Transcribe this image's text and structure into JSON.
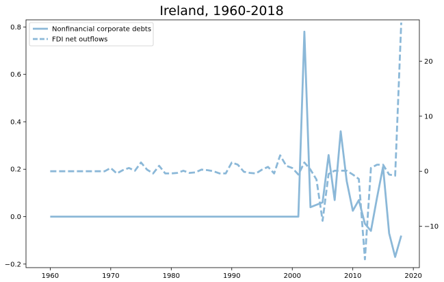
{
  "chart_data": {
    "type": "line",
    "title": "Ireland, 1960-2018",
    "xlabel": "",
    "ylabel_left": "",
    "ylabel_right": "",
    "xlim": [
      1956,
      2021
    ],
    "ylim_left": [
      -0.215,
      0.83
    ],
    "ylim_right": [
      -17.5,
      27.5
    ],
    "x_ticks": [
      1960,
      1970,
      1980,
      1990,
      2000,
      2010,
      2020
    ],
    "y_ticks_left": [
      -0.2,
      0.0,
      0.2,
      0.4,
      0.6,
      0.8
    ],
    "y_ticks_left_labels": [
      "−0.2",
      "0.0",
      "0.2",
      "0.4",
      "0.6",
      "0.8"
    ],
    "y_ticks_right": [
      -10,
      0,
      10,
      20
    ],
    "y_ticks_right_labels": [
      "−10",
      "0",
      "10",
      "20"
    ],
    "grid": false,
    "legend_position": "top-left",
    "color": "#8bb8d8",
    "series": [
      {
        "name": "Nonfinancial corporate debts",
        "axis": "left",
        "style": "solid",
        "x": [
          1960,
          1961,
          1962,
          1963,
          1964,
          1965,
          1966,
          1967,
          1968,
          1969,
          1970,
          1971,
          1972,
          1973,
          1974,
          1975,
          1976,
          1977,
          1978,
          1979,
          1980,
          1981,
          1982,
          1983,
          1984,
          1985,
          1986,
          1987,
          1988,
          1989,
          1990,
          1991,
          1992,
          1993,
          1994,
          1995,
          1996,
          1997,
          1998,
          1999,
          2000,
          2001,
          2002,
          2003,
          2004,
          2005,
          2006,
          2007,
          2008,
          2009,
          2010,
          2011,
          2012,
          2013,
          2014,
          2015,
          2016,
          2017,
          2018
        ],
        "values": [
          0,
          0,
          0,
          0,
          0,
          0,
          0,
          0,
          0,
          0,
          0,
          0,
          0,
          0,
          0,
          0,
          0,
          0,
          0,
          0,
          0,
          0,
          0,
          0,
          0,
          0,
          0,
          0,
          0,
          0,
          0,
          0,
          0,
          0,
          0,
          0,
          0,
          0,
          0,
          0,
          0,
          0,
          0.78,
          0.04,
          0.05,
          0.06,
          0.26,
          0.07,
          0.36,
          0.15,
          0.025,
          0.07,
          -0.03,
          -0.06,
          0.08,
          0.21,
          -0.07,
          -0.17,
          -0.08
        ]
      },
      {
        "name": "FDI net outflows",
        "axis": "right",
        "style": "dashed",
        "x": [
          1960,
          1961,
          1962,
          1963,
          1964,
          1965,
          1966,
          1967,
          1968,
          1969,
          1970,
          1971,
          1972,
          1973,
          1974,
          1975,
          1976,
          1977,
          1978,
          1979,
          1980,
          1981,
          1982,
          1983,
          1984,
          1985,
          1986,
          1987,
          1988,
          1989,
          1990,
          1991,
          1992,
          1993,
          1994,
          1995,
          1996,
          1997,
          1998,
          1999,
          2000,
          2001,
          2002,
          2003,
          2004,
          2005,
          2006,
          2007,
          2008,
          2009,
          2010,
          2011,
          2012,
          2013,
          2014,
          2015,
          2016,
          2017,
          2018
        ],
        "values": [
          0,
          0,
          0,
          0,
          0,
          0,
          0,
          0,
          0,
          0,
          0.6,
          -0.4,
          0.2,
          0.6,
          0.1,
          1.6,
          0.3,
          -0.4,
          1.0,
          -0.4,
          -0.4,
          -0.3,
          0.1,
          -0.3,
          -0.2,
          0.3,
          0.2,
          0.0,
          -0.4,
          -0.4,
          1.6,
          1.2,
          -0.1,
          -0.3,
          -0.4,
          0.3,
          0.8,
          -0.4,
          2.9,
          1.0,
          0.6,
          -0.6,
          1.6,
          0.3,
          -1.5,
          -9.0,
          -0.5,
          0.1,
          0.1,
          0.1,
          -0.6,
          -1.4,
          -16.0,
          0.6,
          1.2,
          1.2,
          -0.6,
          -0.8,
          27.0
        ]
      }
    ]
  }
}
